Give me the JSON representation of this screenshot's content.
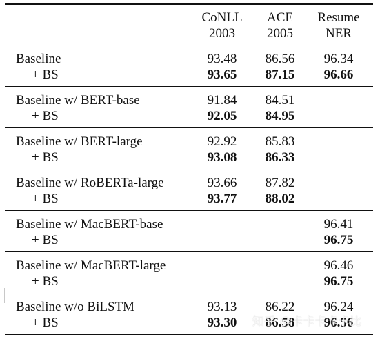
{
  "table": {
    "headers": [
      {
        "line1": "CoNLL",
        "line2": "2003"
      },
      {
        "line1": "ACE",
        "line2": "2005"
      },
      {
        "line1": "Resume",
        "line2": "NER"
      }
    ],
    "rows": [
      {
        "label": "Baseline",
        "conll": "93.48",
        "ace": "86.56",
        "resume": "96.34",
        "bs_label": "+ BS",
        "bs_conll": "93.65",
        "bs_ace": "87.15",
        "bs_resume": "96.66"
      },
      {
        "label": "Baseline w/ BERT-base",
        "conll": "91.84",
        "ace": "84.51",
        "resume": "",
        "bs_label": "+ BS",
        "bs_conll": "92.05",
        "bs_ace": "84.95",
        "bs_resume": ""
      },
      {
        "label": "Baseline w/ BERT-large",
        "conll": "92.92",
        "ace": "85.83",
        "resume": "",
        "bs_label": "+ BS",
        "bs_conll": "93.08",
        "bs_ace": "86.33",
        "bs_resume": ""
      },
      {
        "label": "Baseline w/ RoBERTa-large",
        "conll": "93.66",
        "ace": "87.82",
        "resume": "",
        "bs_label": "+ BS",
        "bs_conll": "93.77",
        "bs_ace": "88.02",
        "bs_resume": ""
      },
      {
        "label": "Baseline w/ MacBERT-base",
        "conll": "",
        "ace": "",
        "resume": "96.41",
        "bs_label": "+ BS",
        "bs_conll": "",
        "bs_ace": "",
        "bs_resume": "96.75"
      },
      {
        "label": "Baseline w/ MacBERT-large",
        "conll": "",
        "ace": "",
        "resume": "96.46",
        "bs_label": "+ BS",
        "bs_conll": "",
        "bs_ace": "",
        "bs_resume": "96.75"
      },
      {
        "label": "Baseline w/o BiLSTM",
        "conll": "93.13",
        "ace": "86.22",
        "resume": "96.24",
        "bs_label": "+ BS",
        "bs_conll": "93.30",
        "bs_ace": "86.58",
        "bs_resume": "96.56"
      }
    ]
  },
  "watermark": "知乎 @卡卡卡卡卡比"
}
